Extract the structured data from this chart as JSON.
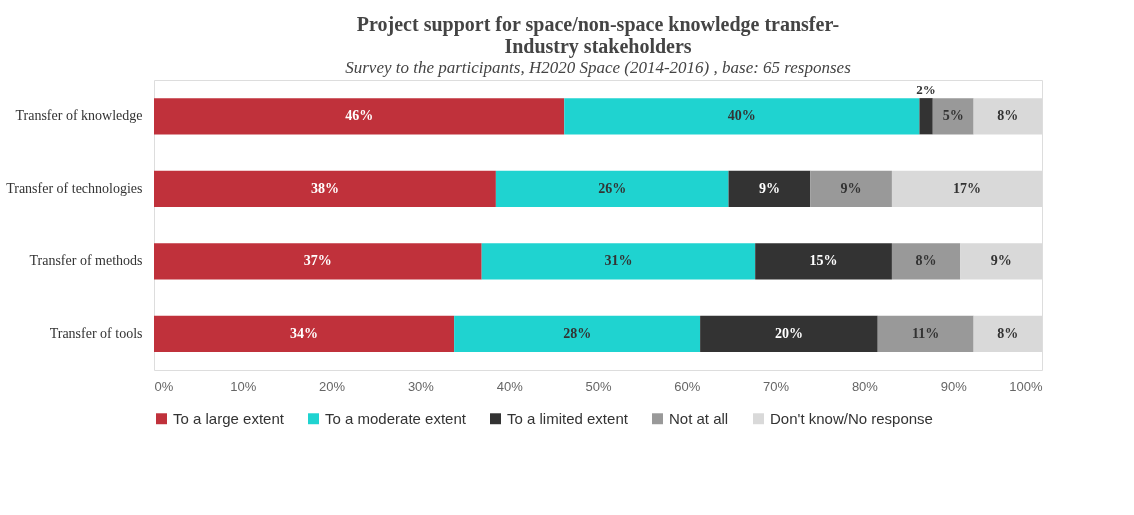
{
  "chart_data": {
    "type": "bar",
    "orientation": "horizontal",
    "stacked": true,
    "title": "Project support for space/non-space knowledge transfer-\nIndustry stakeholders",
    "subtitle": "Survey to the participants, H2020 Space (2014-2016) , base: 65 responses",
    "categories": [
      "Transfer of knowledge",
      "Transfer of technologies",
      "Transfer of methods",
      "Transfer of tools"
    ],
    "series": [
      {
        "name": "To a large extent",
        "color": "#c0313b",
        "values": [
          46.2,
          38.5,
          36.9,
          33.8
        ],
        "value_labels": [
          "46%",
          "38%",
          "37%",
          "34%"
        ]
      },
      {
        "name": "To a moderate extent",
        "color": "#1fd3d0",
        "values": [
          40.0,
          26.2,
          30.8,
          27.7
        ],
        "value_labels": [
          "40%",
          "26%",
          "31%",
          "28%"
        ]
      },
      {
        "name": "To a limited extent",
        "color": "#333333",
        "values": [
          1.5,
          9.2,
          15.4,
          20.0
        ],
        "value_labels": [
          "2%",
          "9%",
          "15%",
          "20%"
        ]
      },
      {
        "name": "Not at all",
        "color": "#999999",
        "values": [
          4.6,
          9.2,
          7.7,
          10.8
        ],
        "value_labels": [
          "5%",
          "9%",
          "8%",
          "11%"
        ]
      },
      {
        "name": "Don't know/No response",
        "color": "#d9d9d9",
        "values": [
          7.7,
          16.9,
          9.2,
          7.7
        ],
        "value_labels": [
          "8%",
          "17%",
          "9%",
          "8%"
        ]
      }
    ],
    "xlim": [
      0,
      100
    ],
    "xticks": [
      {
        "value": 0,
        "label": "0%"
      },
      {
        "value": 10,
        "label": "10%"
      },
      {
        "value": 20,
        "label": "20%"
      },
      {
        "value": 30,
        "label": "30%"
      },
      {
        "value": 40,
        "label": "40%"
      },
      {
        "value": 50,
        "label": "50%"
      },
      {
        "value": 60,
        "label": "60%"
      },
      {
        "value": 70,
        "label": "70%"
      },
      {
        "value": 80,
        "label": "80%"
      },
      {
        "value": 90,
        "label": "90%"
      },
      {
        "value": 100,
        "label": "100%"
      }
    ],
    "grid": false,
    "legend": "bottom"
  }
}
